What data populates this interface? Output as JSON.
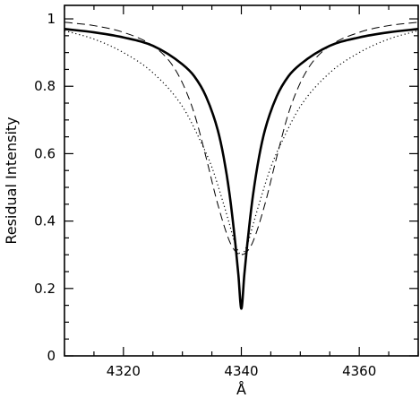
{
  "chart_data": {
    "type": "line",
    "title": "",
    "xlabel": "Å",
    "ylabel": "Residual Intensity",
    "xlim": [
      4310,
      4370
    ],
    "ylim": [
      0,
      1.04
    ],
    "xticks": [
      4320,
      4340,
      4360
    ],
    "xtick_labels": [
      "4320",
      "4340",
      "4360"
    ],
    "yticks": [
      0,
      0.2,
      0.4,
      0.6,
      0.8,
      1
    ],
    "ytick_labels": [
      "0",
      "0.2",
      "0.4",
      "0.6",
      "0.8",
      "1"
    ],
    "grid": false,
    "legend": "none",
    "series": [
      {
        "style": "solid-thick",
        "x": [
          4310,
          4315,
          4320,
          4325,
          4330,
          4332,
          4334,
          4336,
          4337,
          4338,
          4339,
          4339.5,
          4340,
          4340.5,
          4341,
          4341.5,
          4342,
          4343,
          4344,
          4346,
          4348,
          4350,
          4355,
          4360,
          4365,
          4370
        ],
        "y": [
          0.97,
          0.96,
          0.945,
          0.92,
          0.865,
          0.83,
          0.77,
          0.67,
          0.59,
          0.48,
          0.33,
          0.24,
          0.14,
          0.24,
          0.33,
          0.41,
          0.48,
          0.59,
          0.67,
          0.77,
          0.83,
          0.865,
          0.92,
          0.945,
          0.96,
          0.97
        ]
      },
      {
        "style": "dashed",
        "x": [
          4310,
          4315,
          4320,
          4325,
          4328,
          4330,
          4332,
          4334,
          4336,
          4338,
          4339,
          4340,
          4341,
          4342,
          4344,
          4346,
          4348,
          4350,
          4352,
          4355,
          4360,
          4365,
          4370
        ],
        "y": [
          0.99,
          0.98,
          0.96,
          0.92,
          0.87,
          0.81,
          0.72,
          0.59,
          0.45,
          0.34,
          0.31,
          0.3,
          0.31,
          0.34,
          0.45,
          0.59,
          0.72,
          0.81,
          0.87,
          0.92,
          0.96,
          0.98,
          0.99
        ]
      },
      {
        "style": "dotted",
        "x": [
          4310,
          4315,
          4320,
          4325,
          4330,
          4333,
          4335,
          4337,
          4338,
          4339,
          4340,
          4341,
          4342,
          4343,
          4345,
          4347,
          4350,
          4355,
          4360,
          4365,
          4370
        ],
        "y": [
          0.965,
          0.94,
          0.9,
          0.84,
          0.74,
          0.64,
          0.56,
          0.45,
          0.39,
          0.33,
          0.3,
          0.33,
          0.39,
          0.45,
          0.56,
          0.64,
          0.74,
          0.84,
          0.9,
          0.94,
          0.965
        ]
      }
    ]
  }
}
